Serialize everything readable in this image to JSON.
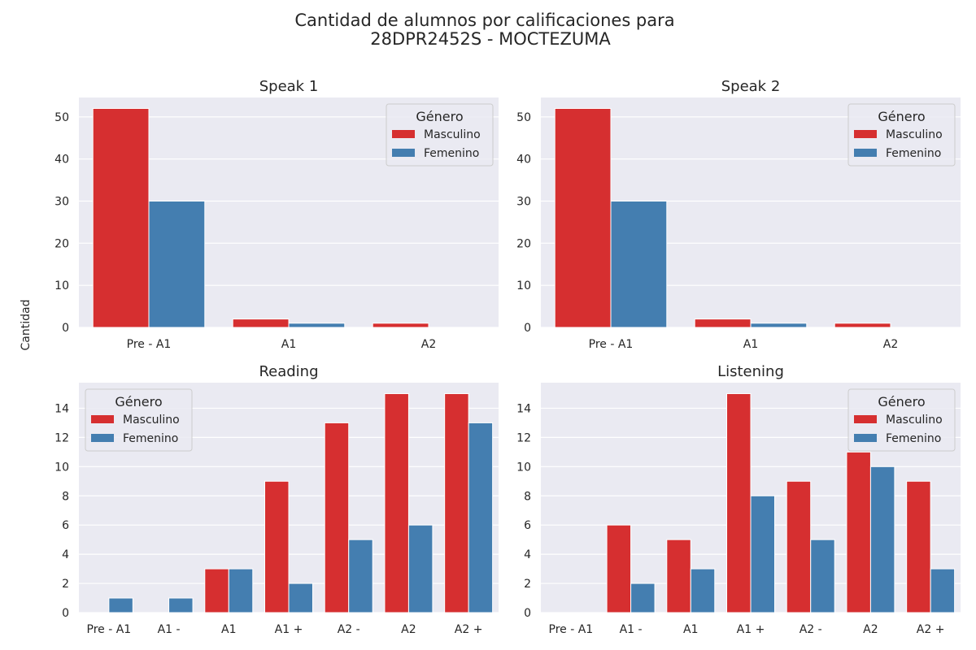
{
  "figure": {
    "title_line1": "Cantidad de alumnos por calificaciones para",
    "title_line2": "28DPR2452S - MOCTEZUMA",
    "ylabel": "Cantidad"
  },
  "colors": {
    "Masculino": "#d62f30",
    "Femenino": "#447eb0",
    "panel_bg": "#eaeaf2",
    "grid": "#ffffff"
  },
  "chart_data": [
    {
      "type": "bar",
      "title": "Speak 1",
      "categories": [
        "Pre - A1",
        "A1",
        "A2"
      ],
      "series": [
        {
          "name": "Masculino",
          "values": [
            52,
            2,
            1
          ]
        },
        {
          "name": "Femenino",
          "values": [
            30,
            1,
            0
          ]
        }
      ],
      "ylim": [
        0,
        54.6
      ],
      "yticks": [
        0,
        10,
        20,
        30,
        40,
        50
      ],
      "legend": {
        "title": "Género",
        "placement": "top-right"
      },
      "grid": true
    },
    {
      "type": "bar",
      "title": "Speak 2",
      "categories": [
        "Pre - A1",
        "A1",
        "A2"
      ],
      "series": [
        {
          "name": "Masculino",
          "values": [
            52,
            2,
            1
          ]
        },
        {
          "name": "Femenino",
          "values": [
            30,
            1,
            0
          ]
        }
      ],
      "ylim": [
        0,
        54.6
      ],
      "yticks": [
        0,
        10,
        20,
        30,
        40,
        50
      ],
      "legend": {
        "title": "Género",
        "placement": "top-right"
      },
      "grid": true
    },
    {
      "type": "bar",
      "title": "Reading",
      "categories": [
        "Pre - A1",
        "A1 -",
        "A1",
        "A1 +",
        "A2 -",
        "A2",
        "A2 +"
      ],
      "series": [
        {
          "name": "Masculino",
          "values": [
            0,
            0,
            3,
            9,
            13,
            15,
            15
          ]
        },
        {
          "name": "Femenino",
          "values": [
            1,
            1,
            3,
            2,
            5,
            6,
            13
          ]
        }
      ],
      "ylim": [
        0,
        15.75
      ],
      "yticks": [
        0,
        2,
        4,
        6,
        8,
        10,
        12,
        14
      ],
      "legend": {
        "title": "Género",
        "placement": "top-left"
      },
      "grid": true
    },
    {
      "type": "bar",
      "title": "Listening",
      "categories": [
        "Pre - A1",
        "A1 -",
        "A1",
        "A1 +",
        "A2 -",
        "A2",
        "A2 +"
      ],
      "series": [
        {
          "name": "Masculino",
          "values": [
            0,
            6,
            5,
            15,
            9,
            11,
            9
          ]
        },
        {
          "name": "Femenino",
          "values": [
            0,
            2,
            3,
            8,
            5,
            10,
            3
          ]
        }
      ],
      "ylim": [
        0,
        15.75
      ],
      "yticks": [
        0,
        2,
        4,
        6,
        8,
        10,
        12,
        14
      ],
      "legend": {
        "title": "Género",
        "placement": "top-right"
      },
      "grid": true
    }
  ]
}
